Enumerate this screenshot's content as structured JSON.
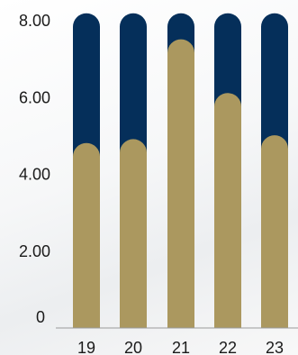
{
  "chart_data": {
    "type": "bar",
    "categories": [
      "19",
      "20",
      "21",
      "22",
      "23"
    ],
    "series": [
      {
        "values": [
          8.0,
          8.0,
          8.0,
          8.0,
          8.0
        ],
        "color": "#052f5a"
      },
      {
        "values": [
          4.5,
          4.6,
          7.2,
          5.8,
          4.7
        ],
        "color": "#ab985f"
      }
    ],
    "y_ticks": [
      "0",
      "2.00",
      "4.00",
      "6.00",
      "8.00"
    ],
    "ylim": [
      0,
      8.6
    ],
    "grid": false,
    "legend": "none",
    "xlabel": "",
    "ylabel": "",
    "title": ""
  }
}
